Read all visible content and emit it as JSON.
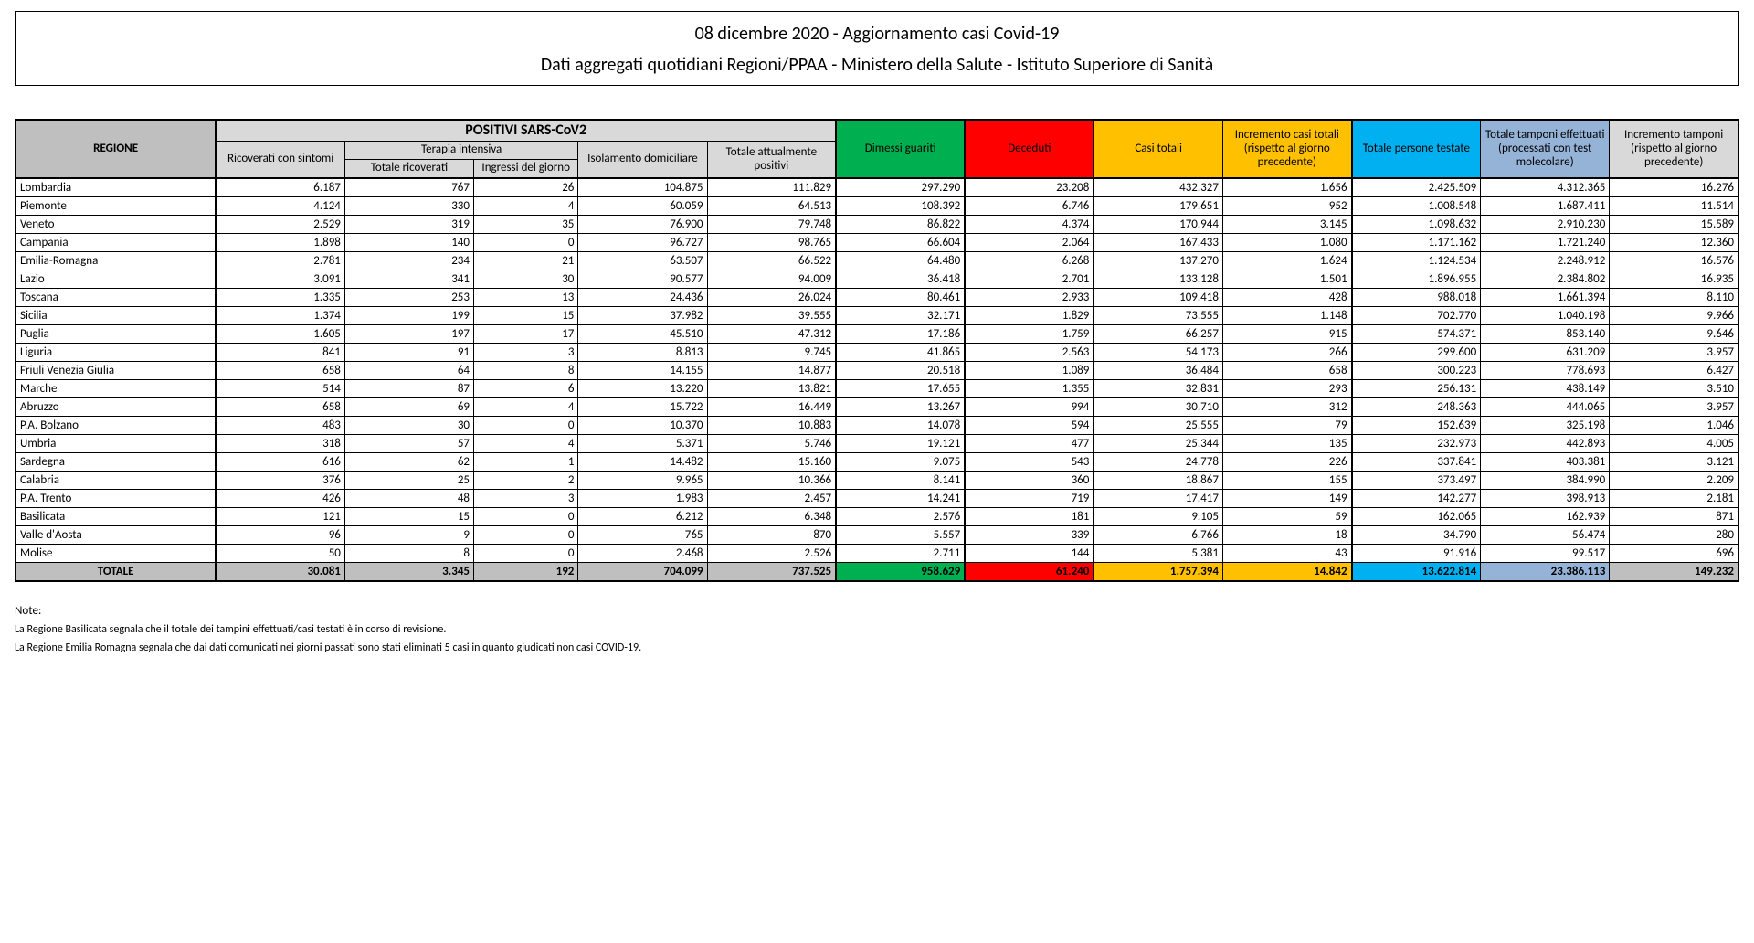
{
  "header": {
    "title": "08 dicembre 2020 - Aggiornamento casi Covid-19",
    "subtitle": "Dati aggregati quotidiani Regioni/PPAA - Ministero della Salute - Istituto Superiore di Sanità"
  },
  "columns": {
    "regione": "REGIONE",
    "positivi_group": "POSITIVI SARS-CoV2",
    "terapia_group": "Terapia intensiva",
    "ricoverati_sintomi": "Ricoverati con sintomi",
    "totale_ricoverati": "Totale ricoverati",
    "ingressi_giorno": "Ingressi del giorno",
    "isolamento": "Isolamento domiciliare",
    "totale_positivi": "Totale attualmente positivi",
    "dimessi": "Dimessi guariti",
    "deceduti": "Deceduti",
    "casi_totali": "Casi totali",
    "incremento_casi": "Incremento casi totali (rispetto al giorno precedente)",
    "persone_testate": "Totale persone testate",
    "tamponi": "Totale tamponi effettuati (processati con test molecolare)",
    "incremento_tamponi": "Incremento tamponi (rispetto al giorno precedente)"
  },
  "colors": {
    "green": "#00b050",
    "red": "#ff0000",
    "yellow": "#ffc000",
    "blue": "#00b0f0",
    "lblue": "#95b3d7",
    "grey_dark": "#bfbfbf",
    "grey_light": "#d9d9d9"
  },
  "rows": [
    {
      "name": "Lombardia",
      "v": [
        "6.187",
        "767",
        "26",
        "104.875",
        "111.829",
        "297.290",
        "23.208",
        "432.327",
        "1.656",
        "2.425.509",
        "4.312.365",
        "16.276"
      ]
    },
    {
      "name": "Piemonte",
      "v": [
        "4.124",
        "330",
        "4",
        "60.059",
        "64.513",
        "108.392",
        "6.746",
        "179.651",
        "952",
        "1.008.548",
        "1.687.411",
        "11.514"
      ]
    },
    {
      "name": "Veneto",
      "v": [
        "2.529",
        "319",
        "35",
        "76.900",
        "79.748",
        "86.822",
        "4.374",
        "170.944",
        "3.145",
        "1.098.632",
        "2.910.230",
        "15.589"
      ]
    },
    {
      "name": "Campania",
      "v": [
        "1.898",
        "140",
        "0",
        "96.727",
        "98.765",
        "66.604",
        "2.064",
        "167.433",
        "1.080",
        "1.171.162",
        "1.721.240",
        "12.360"
      ]
    },
    {
      "name": "Emilia-Romagna",
      "v": [
        "2.781",
        "234",
        "21",
        "63.507",
        "66.522",
        "64.480",
        "6.268",
        "137.270",
        "1.624",
        "1.124.534",
        "2.248.912",
        "16.576"
      ]
    },
    {
      "name": "Lazio",
      "v": [
        "3.091",
        "341",
        "30",
        "90.577",
        "94.009",
        "36.418",
        "2.701",
        "133.128",
        "1.501",
        "1.896.955",
        "2.384.802",
        "16.935"
      ]
    },
    {
      "name": "Toscana",
      "v": [
        "1.335",
        "253",
        "13",
        "24.436",
        "26.024",
        "80.461",
        "2.933",
        "109.418",
        "428",
        "988.018",
        "1.661.394",
        "8.110"
      ]
    },
    {
      "name": "Sicilia",
      "v": [
        "1.374",
        "199",
        "15",
        "37.982",
        "39.555",
        "32.171",
        "1.829",
        "73.555",
        "1.148",
        "702.770",
        "1.040.198",
        "9.966"
      ]
    },
    {
      "name": "Puglia",
      "v": [
        "1.605",
        "197",
        "17",
        "45.510",
        "47.312",
        "17.186",
        "1.759",
        "66.257",
        "915",
        "574.371",
        "853.140",
        "9.646"
      ]
    },
    {
      "name": "Liguria",
      "v": [
        "841",
        "91",
        "3",
        "8.813",
        "9.745",
        "41.865",
        "2.563",
        "54.173",
        "266",
        "299.600",
        "631.209",
        "3.957"
      ]
    },
    {
      "name": "Friuli Venezia Giulia",
      "v": [
        "658",
        "64",
        "8",
        "14.155",
        "14.877",
        "20.518",
        "1.089",
        "36.484",
        "658",
        "300.223",
        "778.693",
        "6.427"
      ]
    },
    {
      "name": "Marche",
      "v": [
        "514",
        "87",
        "6",
        "13.220",
        "13.821",
        "17.655",
        "1.355",
        "32.831",
        "293",
        "256.131",
        "438.149",
        "3.510"
      ]
    },
    {
      "name": "Abruzzo",
      "v": [
        "658",
        "69",
        "4",
        "15.722",
        "16.449",
        "13.267",
        "994",
        "30.710",
        "312",
        "248.363",
        "444.065",
        "3.957"
      ]
    },
    {
      "name": "P.A. Bolzano",
      "v": [
        "483",
        "30",
        "0",
        "10.370",
        "10.883",
        "14.078",
        "594",
        "25.555",
        "79",
        "152.639",
        "325.198",
        "1.046"
      ]
    },
    {
      "name": "Umbria",
      "v": [
        "318",
        "57",
        "4",
        "5.371",
        "5.746",
        "19.121",
        "477",
        "25.344",
        "135",
        "232.973",
        "442.893",
        "4.005"
      ]
    },
    {
      "name": "Sardegna",
      "v": [
        "616",
        "62",
        "1",
        "14.482",
        "15.160",
        "9.075",
        "543",
        "24.778",
        "226",
        "337.841",
        "403.381",
        "3.121"
      ]
    },
    {
      "name": "Calabria",
      "v": [
        "376",
        "25",
        "2",
        "9.965",
        "10.366",
        "8.141",
        "360",
        "18.867",
        "155",
        "373.497",
        "384.990",
        "2.209"
      ]
    },
    {
      "name": "P.A. Trento",
      "v": [
        "426",
        "48",
        "3",
        "1.983",
        "2.457",
        "14.241",
        "719",
        "17.417",
        "149",
        "142.277",
        "398.913",
        "2.181"
      ]
    },
    {
      "name": "Basilicata",
      "v": [
        "121",
        "15",
        "0",
        "6.212",
        "6.348",
        "2.576",
        "181",
        "9.105",
        "59",
        "162.065",
        "162.939",
        "871"
      ]
    },
    {
      "name": "Valle d'Aosta",
      "v": [
        "96",
        "9",
        "0",
        "765",
        "870",
        "5.557",
        "339",
        "6.766",
        "18",
        "34.790",
        "56.474",
        "280"
      ]
    },
    {
      "name": "Molise",
      "v": [
        "50",
        "8",
        "0",
        "2.468",
        "2.526",
        "2.711",
        "144",
        "5.381",
        "43",
        "91.916",
        "99.517",
        "696"
      ]
    }
  ],
  "total": {
    "label": "TOTALE",
    "v": [
      "30.081",
      "3.345",
      "192",
      "704.099",
      "737.525",
      "958.629",
      "61.240",
      "1.757.394",
      "14.842",
      "13.622.814",
      "23.386.113",
      "149.232"
    ],
    "cell_bg": [
      "#bfbfbf",
      "#bfbfbf",
      "#bfbfbf",
      "#bfbfbf",
      "#bfbfbf",
      "#bfbfbf",
      "#00b050",
      "#ff0000",
      "#ffc000",
      "#ffc000",
      "#00b0f0",
      "#95b3d7",
      "#bfbfbf"
    ]
  },
  "notes": {
    "label": "Note:",
    "items": [
      "La Regione Basilicata segnala che il totale dei tampini effettuati/casi testati è in corso di revisione.",
      "La Regione Emilia Romagna segnala che dai dati comunicati nei giorni passati sono stati eliminati 5 casi in quanto giudicati non casi COVID-19."
    ]
  }
}
